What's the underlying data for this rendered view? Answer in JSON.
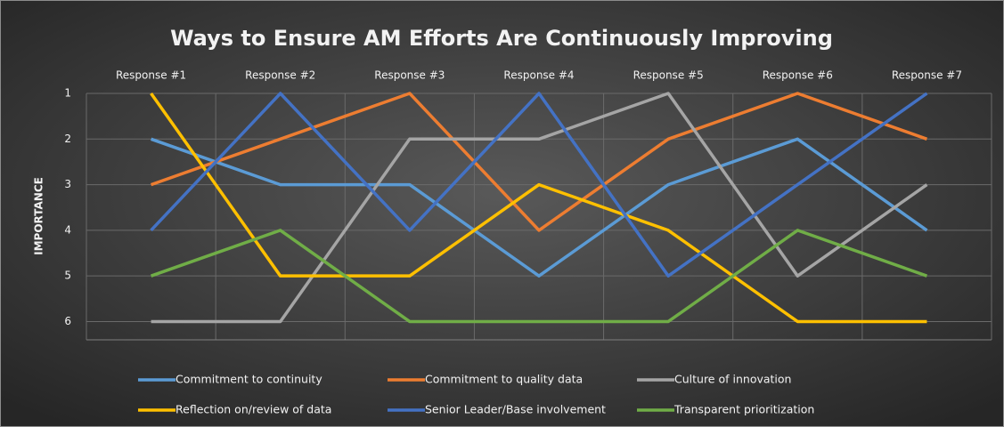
{
  "chart_data": {
    "type": "line",
    "title": "Ways to Ensure AM Efforts Are Continuously Improving",
    "y_label": "IMPORTANCE",
    "categories": [
      "Response #1",
      "Response #2",
      "Response #3",
      "Response #4",
      "Response #5",
      "Response #6",
      "Response #7"
    ],
    "series": [
      {
        "name": "Commitment to continuity",
        "color": "#5b9bd5",
        "values": [
          2,
          3,
          3,
          5,
          3,
          2,
          4
        ]
      },
      {
        "name": "Commitment to quality data",
        "color": "#ed7d31",
        "values": [
          3,
          2,
          1,
          4,
          2,
          1,
          2
        ]
      },
      {
        "name": "Culture of innovation",
        "color": "#a5a5a5",
        "values": [
          6,
          6,
          2,
          2,
          1,
          5,
          3
        ]
      },
      {
        "name": "Reflection on/review of data",
        "color": "#ffc000",
        "values": [
          1,
          5,
          5,
          3,
          4,
          6,
          6
        ]
      },
      {
        "name": "Senior Leader/Base involvement",
        "color": "#4472c4",
        "values": [
          4,
          1,
          4,
          1,
          5,
          3,
          1
        ]
      },
      {
        "name": "Transparent prioritization",
        "color": "#70ad47",
        "values": [
          5,
          4,
          6,
          6,
          6,
          4,
          5
        ]
      }
    ],
    "ylim": [
      1,
      6.4
    ],
    "yticks": [
      1,
      2,
      3,
      4,
      5,
      6
    ],
    "y_inverted": true,
    "grid": true,
    "legend": "bottom"
  }
}
